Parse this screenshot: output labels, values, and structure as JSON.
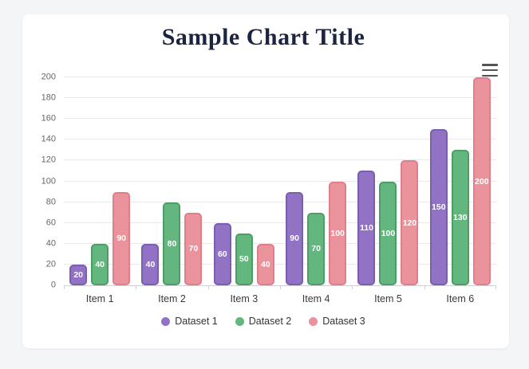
{
  "page": {
    "background_color": "#f4f5f6",
    "card_background_color": "#ffffff"
  },
  "header": {
    "title": "Sample Chart Title",
    "title_color": "#1b2440"
  },
  "toolbar": {
    "menu_icon": "hamburger-menu-icon",
    "menu_icon_color": "#545454"
  },
  "chart_data": {
    "type": "bar",
    "title": "Sample Chart Title",
    "categories": [
      "Item 1",
      "Item 2",
      "Item 3",
      "Item 4",
      "Item 5",
      "Item 6"
    ],
    "series": [
      {
        "name": "Dataset 1",
        "values": [
          20,
          40,
          60,
          90,
          110,
          150
        ],
        "fill": "#9172c5",
        "border": "#7a5fae"
      },
      {
        "name": "Dataset 2",
        "values": [
          40,
          80,
          50,
          70,
          100,
          130
        ],
        "fill": "#63b77e",
        "border": "#4d9e66"
      },
      {
        "name": "Dataset 3",
        "values": [
          90,
          70,
          40,
          100,
          120,
          200
        ],
        "fill": "#eb939c",
        "border": "#e07e89"
      }
    ],
    "ylim": [
      0,
      200
    ],
    "ytick_step": 20,
    "grid": true,
    "legend_position": "bottom",
    "value_labels": true,
    "value_label_color": "#ffffff",
    "grid_color": "#e9e9ec",
    "axis_line_color": "#cfcfd4",
    "ytick_color": "#666666",
    "xtick_color": "#3a3a3a"
  }
}
